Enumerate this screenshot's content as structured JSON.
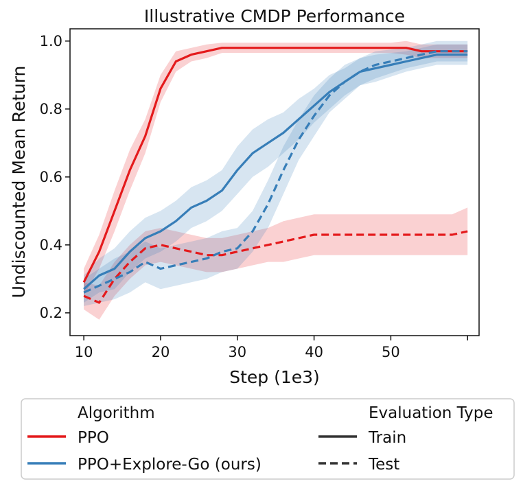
{
  "chart_data": {
    "type": "line",
    "title": "Illustrative CMDP Performance",
    "xlabel": "Step (1e3)",
    "ylabel": "Undiscounted Mean Return",
    "xlim": [
      8.2,
      61.5
    ],
    "ylim": [
      0.133,
      1.036
    ],
    "x_ticks": [
      10,
      20,
      30,
      40,
      50,
      60
    ],
    "x_tick_labels": [
      "10",
      "20",
      "30",
      "40",
      "50",
      ""
    ],
    "y_ticks": [
      0.2,
      0.4,
      0.6,
      0.8,
      1.0
    ],
    "y_tick_labels": [
      "0.2",
      "0.4",
      "0.6",
      "0.8",
      "1.0"
    ],
    "x": [
      10,
      12,
      14,
      16,
      18,
      20,
      22,
      24,
      26,
      28,
      30,
      32,
      34,
      36,
      38,
      40,
      42,
      44,
      46,
      48,
      50,
      52,
      54,
      56,
      58,
      60
    ],
    "series": [
      {
        "name": "PPO - Train",
        "algorithm": "PPO",
        "evaluation": "Train",
        "color": "#e41a1c",
        "style": "solid",
        "values": [
          0.29,
          0.38,
          0.5,
          0.62,
          0.72,
          0.86,
          0.94,
          0.96,
          0.97,
          0.98,
          0.98,
          0.98,
          0.98,
          0.98,
          0.98,
          0.98,
          0.98,
          0.98,
          0.98,
          0.98,
          0.98,
          0.98,
          0.97,
          0.97,
          0.97,
          0.97
        ],
        "band": [
          0.04,
          0.05,
          0.06,
          0.06,
          0.05,
          0.04,
          0.03,
          0.02,
          0.02,
          0.015,
          0.015,
          0.015,
          0.015,
          0.015,
          0.015,
          0.015,
          0.015,
          0.015,
          0.015,
          0.015,
          0.015,
          0.02,
          0.02,
          0.02,
          0.02,
          0.02
        ]
      },
      {
        "name": "PPO - Test",
        "algorithm": "PPO",
        "evaluation": "Test",
        "color": "#e41a1c",
        "style": "dashed",
        "values": [
          0.25,
          0.23,
          0.3,
          0.35,
          0.39,
          0.4,
          0.39,
          0.38,
          0.37,
          0.37,
          0.38,
          0.39,
          0.4,
          0.41,
          0.42,
          0.43,
          0.43,
          0.43,
          0.43,
          0.43,
          0.43,
          0.43,
          0.43,
          0.43,
          0.43,
          0.44
        ],
        "band": [
          0.04,
          0.05,
          0.05,
          0.05,
          0.05,
          0.05,
          0.05,
          0.05,
          0.05,
          0.05,
          0.05,
          0.05,
          0.05,
          0.06,
          0.06,
          0.06,
          0.06,
          0.06,
          0.06,
          0.06,
          0.06,
          0.06,
          0.06,
          0.06,
          0.06,
          0.07
        ]
      },
      {
        "name": "PPO+Explore-Go (ours) - Train",
        "algorithm": "PPO+Explore-Go (ours)",
        "evaluation": "Train",
        "color": "#377eb8",
        "style": "solid",
        "values": [
          0.27,
          0.31,
          0.33,
          0.38,
          0.42,
          0.44,
          0.47,
          0.51,
          0.53,
          0.56,
          0.62,
          0.67,
          0.7,
          0.73,
          0.77,
          0.81,
          0.85,
          0.88,
          0.91,
          0.92,
          0.93,
          0.94,
          0.95,
          0.96,
          0.96,
          0.96
        ],
        "band": [
          0.04,
          0.05,
          0.06,
          0.06,
          0.06,
          0.06,
          0.06,
          0.06,
          0.06,
          0.06,
          0.07,
          0.07,
          0.07,
          0.06,
          0.06,
          0.05,
          0.05,
          0.04,
          0.04,
          0.04,
          0.035,
          0.03,
          0.03,
          0.03,
          0.03,
          0.03
        ]
      },
      {
        "name": "PPO+Explore-Go (ours) - Test",
        "algorithm": "PPO+Explore-Go (ours)",
        "evaluation": "Test",
        "color": "#377eb8",
        "style": "dashed",
        "values": [
          0.26,
          0.28,
          0.3,
          0.32,
          0.35,
          0.33,
          0.34,
          0.35,
          0.36,
          0.38,
          0.39,
          0.44,
          0.52,
          0.62,
          0.71,
          0.78,
          0.84,
          0.88,
          0.91,
          0.93,
          0.94,
          0.95,
          0.96,
          0.97,
          0.97,
          0.97
        ],
        "band": [
          0.04,
          0.05,
          0.06,
          0.06,
          0.06,
          0.06,
          0.06,
          0.06,
          0.06,
          0.06,
          0.06,
          0.06,
          0.07,
          0.07,
          0.06,
          0.06,
          0.05,
          0.05,
          0.04,
          0.04,
          0.035,
          0.03,
          0.03,
          0.03,
          0.03,
          0.03
        ]
      }
    ],
    "legend": {
      "position": "below",
      "algorithm_header": "Algorithm",
      "evaluation_header": "Evaluation Type",
      "algorithm_entries": [
        {
          "label": "PPO",
          "color": "#e41a1c"
        },
        {
          "label": "PPO+Explore-Go (ours)",
          "color": "#377eb8"
        }
      ],
      "evaluation_entries": [
        {
          "label": "Train",
          "style": "solid",
          "color": "#333333"
        },
        {
          "label": "Test",
          "style": "dashed",
          "color": "#333333"
        }
      ]
    }
  }
}
